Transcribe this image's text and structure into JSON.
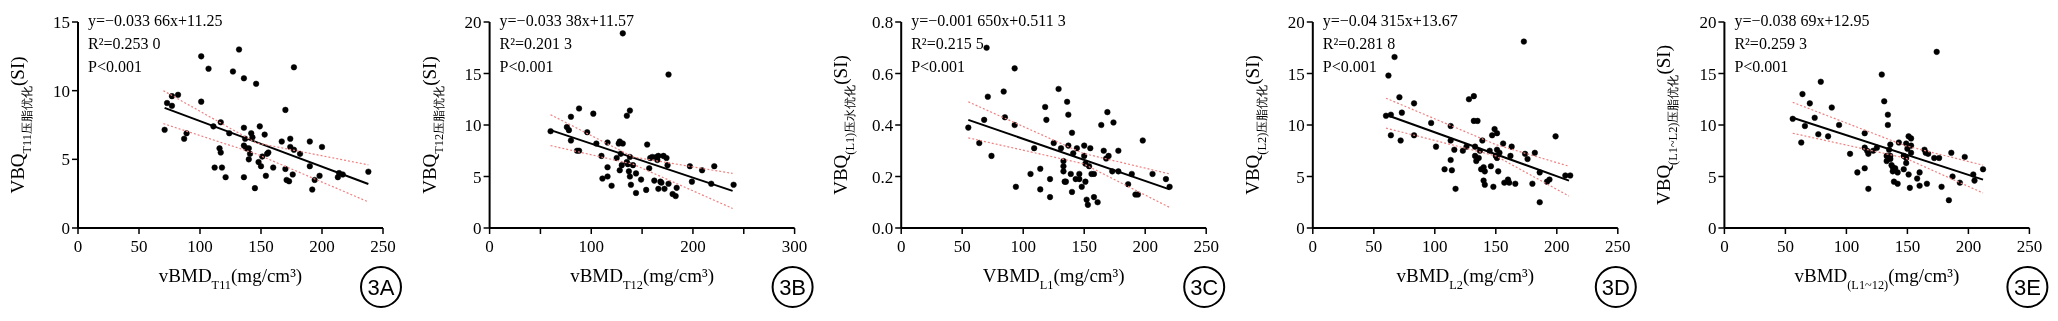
{
  "chart_data": [
    {
      "type": "scatter",
      "xlabel": "vBMD$_{T11}$(mg/cm³)",
      "ylabel": "VBQ$_{T11压脂优化}$(SI)",
      "xlim": [
        0,
        250
      ],
      "ylim": [
        0,
        15
      ],
      "xticks": [
        0,
        50,
        100,
        150,
        200,
        250
      ],
      "yticks": [
        0,
        5,
        10,
        15
      ],
      "annotations": [
        "y=−0.033 66x+11.25",
        "R²=0.253 0",
        "P<0.001",
        "3A"
      ],
      "series": [
        {
          "color": "#000000",
          "marker": "circle",
          "x": [
            71,
            73,
            77,
            77,
            82,
            87,
            89,
            101,
            101,
            107,
            111,
            112,
            116,
            117,
            117,
            118,
            121,
            124,
            127,
            132,
            136,
            136,
            136,
            136,
            137,
            138,
            140,
            140,
            141,
            142,
            143,
            145,
            146,
            148,
            149,
            150,
            151,
            153,
            154,
            155,
            156,
            160,
            167,
            170,
            170,
            171,
            173,
            174,
            174,
            176,
            177,
            177,
            182,
            190,
            190,
            192,
            194,
            198,
            200,
            213,
            214,
            217,
            238
          ],
          "values": [
            7.15,
            9.1,
            9.6,
            8.9,
            9.7,
            6.5,
            6.9,
            9.2,
            12.5,
            11.6,
            7.4,
            4.4,
            5.8,
            7.7,
            5.5,
            4.4,
            3.7,
            6.9,
            11.4,
            13.0,
            10.9,
            7.3,
            6.0,
            3.7,
            6.5,
            5.8,
            5.8,
            5.0,
            5.4,
            6.9,
            6.6,
            2.9,
            10.5,
            4.8,
            7.4,
            4.5,
            5.2,
            6.8,
            3.8,
            5.4,
            5.5,
            4.4,
            6.3,
            8.6,
            4.3,
            3.5,
            3.4,
            6.5,
            5.9,
            3.9,
            5.7,
            11.7,
            5.4,
            6.3,
            4.5,
            2.8,
            3.5,
            3.8,
            5.9,
            3.7,
            4.0,
            3.9,
            4.1
          ]
        },
        {
          "type": "line",
          "color": "#000000",
          "line_style": "solid",
          "x": [
            71,
            238
          ],
          "values": [
            8.75,
            3.2
          ]
        },
        {
          "type": "line",
          "color": "#f08080",
          "line_style": "dotted",
          "x": [
            70,
            146,
            238
          ],
          "values": [
            10.0,
            6.2,
            4.6
          ]
        },
        {
          "type": "line",
          "color": "#f08080",
          "line_style": "dotted",
          "x": [
            70,
            146,
            238
          ],
          "values": [
            7.6,
            5.4,
            1.9
          ]
        }
      ]
    },
    {
      "type": "scatter",
      "xlabel": "vBMD$_{T12}$(mg/cm³)",
      "ylabel": "VBQ$_{T12压脂优化}$(SI)",
      "xlim": [
        0,
        300
      ],
      "ylim": [
        0,
        20
      ],
      "xticks": [
        0,
        {
          "value": 50,
          "label": null
        },
        100,
        {
          "value": 150,
          "label": null
        },
        200,
        {
          "value": 250,
          "label": null
        },
        300
      ],
      "yticks": [
        0,
        5,
        10,
        15,
        20
      ],
      "annotations": [
        "y=−0.033 38x+11.57",
        "R²=0.201 3",
        "P<0.001",
        "3B"
      ],
      "series": [
        {
          "color": "#000000",
          "marker": "circle",
          "x": [
            60,
            76,
            78,
            80,
            80,
            86,
            88,
            88,
            96,
            102,
            105,
            110,
            111,
            116,
            116,
            116,
            120,
            125,
            127,
            128,
            128,
            129,
            130,
            131,
            131,
            135,
            135,
            136,
            137,
            138,
            138,
            138,
            139,
            141,
            144,
            144,
            149,
            154,
            155,
            157,
            158,
            160,
            162,
            164,
            165,
            166,
            166,
            168,
            169,
            171,
            172,
            174,
            175,
            176,
            176,
            180,
            183,
            184,
            197,
            199,
            209,
            218,
            221,
            240
          ],
          "values": [
            9.4,
            9.8,
            9.5,
            10.8,
            8.5,
            7.5,
            7.5,
            11.6,
            9.3,
            11.1,
            8.2,
            7.0,
            4.8,
            8.3,
            5.9,
            5.0,
            4.1,
            6.8,
            8.2,
            8.4,
            5.6,
            7.2,
            6.1,
            18.9,
            8.2,
            10.9,
            6.4,
            6.2,
            5.5,
            11.4,
            6.9,
            5.0,
            4.2,
            6.1,
            5.3,
            3.4,
            4.7,
            3.7,
            8.1,
            5.8,
            6.8,
            6.9,
            4.6,
            6.9,
            6.6,
            7.0,
            3.8,
            4.5,
            4.4,
            7.0,
            3.8,
            6.8,
            6.1,
            14.9,
            4.3,
            3.3,
            3.1,
            3.9,
            6.0,
            4.5,
            5.6,
            4.3,
            6.0,
            4.2
          ]
        },
        {
          "type": "line",
          "color": "#000000",
          "line_style": "solid",
          "x": [
            60,
            239
          ],
          "values": [
            9.5,
            3.6
          ]
        },
        {
          "type": "line",
          "color": "#f08080",
          "line_style": "dotted",
          "x": [
            60,
            141,
            239
          ],
          "values": [
            11.0,
            6.9,
            5.3
          ]
        },
        {
          "type": "line",
          "color": "#f08080",
          "line_style": "dotted",
          "x": [
            60,
            141,
            239
          ],
          "values": [
            8.0,
            6.2,
            1.9
          ]
        }
      ]
    },
    {
      "type": "scatter",
      "xlabel": "VBMD$_{L1}$(mg/cm³)",
      "ylabel": "VBQ$_{(L1)压水优化}$(SI)",
      "xlim": [
        0,
        250
      ],
      "ylim": [
        0,
        0.8
      ],
      "xticks": [
        0,
        50,
        100,
        150,
        200,
        250
      ],
      "yticks": [
        {
          "value": 0,
          "label": "0.0"
        },
        0.2,
        0.4,
        0.6,
        0.8
      ],
      "annotations": [
        "y=−0.001 650x+0.511 3",
        "R²=0.215 5",
        "P<0.001",
        "3C"
      ],
      "series": [
        {
          "color": "#000000",
          "marker": "circle",
          "x": [
            55,
            64,
            68,
            70,
            71,
            74,
            84,
            85,
            93,
            93,
            94,
            106,
            109,
            114,
            114,
            118,
            119,
            122,
            122,
            125,
            129,
            131,
            133,
            133,
            133,
            134,
            135,
            136,
            137,
            137,
            139,
            140,
            140,
            141,
            143,
            144,
            146,
            146,
            148,
            150,
            150,
            151,
            151,
            152,
            153,
            154,
            155,
            156,
            158,
            158,
            161,
            164,
            166,
            168,
            169,
            170,
            173,
            174,
            178,
            178,
            186,
            189,
            192,
            194,
            198,
            206,
            217,
            220
          ],
          "values": [
            0.39,
            0.33,
            0.42,
            0.7,
            0.51,
            0.28,
            0.53,
            0.43,
            0.4,
            0.62,
            0.16,
            0.21,
            0.31,
            0.23,
            0.15,
            0.47,
            0.42,
            0.19,
            0.12,
            0.33,
            0.54,
            0.31,
            0.26,
            0.24,
            0.22,
            0.18,
            0.18,
            0.49,
            0.44,
            0.32,
            0.21,
            0.37,
            0.14,
            0.29,
            0.19,
            0.31,
            0.21,
            0.19,
            0.16,
            0.32,
            0.28,
            0.25,
            0.18,
            0.11,
            0.09,
            0.24,
            0.31,
            0.21,
            0.21,
            0.12,
            0.1,
            0.4,
            0.3,
            0.27,
            0.45,
            0.28,
            0.22,
            0.41,
            0.22,
            0.3,
            0.17,
            0.21,
            0.13,
            0.13,
            0.34,
            0.21,
            0.19,
            0.16
          ]
        },
        {
          "type": "line",
          "color": "#000000",
          "line_style": "solid",
          "x": [
            55,
            220
          ],
          "values": [
            0.42,
            0.15
          ]
        },
        {
          "type": "line",
          "color": "#f08080",
          "line_style": "dotted",
          "x": [
            55,
            149,
            220
          ],
          "values": [
            0.49,
            0.29,
            0.21
          ]
        },
        {
          "type": "line",
          "color": "#f08080",
          "line_style": "dotted",
          "x": [
            55,
            149,
            220
          ],
          "values": [
            0.35,
            0.25,
            0.08
          ]
        }
      ]
    },
    {
      "type": "scatter",
      "xlabel": "vBMD$_{L2}$(mg/cm³)",
      "ylabel": "VBQ$_{(L2)压脂优化}$(SI)",
      "xlim": [
        0,
        250
      ],
      "ylim": [
        0,
        20
      ],
      "xticks": [
        0,
        50,
        100,
        150,
        200,
        250
      ],
      "yticks": [
        0,
        5,
        10,
        15,
        20
      ],
      "annotations": [
        "y=−0.04 315x+13.67",
        "R²=0.281 8",
        "P<0.001",
        "3D"
      ],
      "series": [
        {
          "color": "#000000",
          "marker": "circle",
          "x": [
            60,
            62,
            64,
            64,
            67,
            71,
            72,
            73,
            83,
            83,
            97,
            101,
            108,
            113,
            113,
            113,
            114,
            116,
            117,
            123,
            126,
            128,
            132,
            132,
            135,
            133,
            133,
            134,
            136,
            137,
            138,
            139,
            140,
            140,
            141,
            141,
            145,
            146,
            147,
            148,
            149,
            150,
            151,
            151,
            151,
            152,
            153,
            156,
            157,
            160,
            161,
            162,
            163,
            166,
            173,
            174,
            176,
            180,
            182,
            186,
            186,
            192,
            194,
            199,
            207,
            211
          ],
          "values": [
            10.9,
            14.8,
            11.0,
            9.0,
            16.6,
            12.7,
            8.5,
            11.2,
            12.1,
            9.0,
            10.2,
            7.9,
            5.7,
            9.9,
            8.5,
            6.6,
            5.6,
            7.6,
            3.8,
            7.5,
            7.9,
            12.5,
            12.8,
            10.4,
            10.4,
            7.9,
            7.0,
            6.5,
            6.8,
            7.5,
            5.7,
            8.5,
            5.9,
            4.6,
            5.5,
            4.2,
            7.5,
            6.0,
            9.0,
            4.0,
            9.6,
            7.0,
            9.2,
            7.6,
            6.8,
            5.5,
            7.3,
            8.2,
            4.4,
            4.7,
            4.4,
            7.0,
            7.9,
            4.3,
            18.1,
            7.2,
            6.7,
            4.3,
            7.3,
            2.5,
            5.4,
            4.5,
            4.7,
            8.9,
            5.1,
            5.1
          ]
        },
        {
          "type": "line",
          "color": "#000000",
          "line_style": "solid",
          "x": [
            60,
            210
          ],
          "values": [
            11.0,
            4.6
          ]
        },
        {
          "type": "line",
          "color": "#f08080",
          "line_style": "dotted",
          "x": [
            60,
            150,
            210
          ],
          "values": [
            12.6,
            8.1,
            6.0
          ]
        },
        {
          "type": "line",
          "color": "#f08080",
          "line_style": "dotted",
          "x": [
            60,
            150,
            210
          ],
          "values": [
            9.7,
            7.0,
            3.1
          ]
        }
      ]
    },
    {
      "type": "scatter",
      "xlabel": "vBMD$_{(L1~12)}$(mg/cm³)",
      "ylabel": "VBQ$_{(L1~L2)压脂优化}$(SI)",
      "xlim": [
        0,
        250
      ],
      "ylim": [
        0,
        20
      ],
      "xticks": [
        0,
        50,
        100,
        150,
        200,
        250
      ],
      "yticks": [
        0,
        5,
        10,
        15,
        20
      ],
      "annotations": [
        "y=−0.038 69x+12.95",
        "R²=0.259 3",
        "P<0.001",
        "3E"
      ],
      "series": [
        {
          "color": "#000000",
          "marker": "circle",
          "x": [
            56,
            63,
            64,
            66,
            70,
            74,
            77,
            79,
            85,
            88,
            94,
            103,
            109,
            115,
            115,
            115,
            117,
            118,
            118,
            122,
            125,
            129,
            131,
            133,
            133,
            134,
            134,
            135,
            136,
            136,
            136,
            137,
            138,
            138,
            139,
            140,
            142,
            142,
            143,
            147,
            147,
            149,
            149,
            149,
            150,
            151,
            151,
            152,
            153,
            153,
            153,
            158,
            160,
            160,
            164,
            165,
            166,
            167,
            172,
            174,
            176,
            178,
            184,
            186,
            187,
            193,
            197,
            204,
            205,
            212
          ],
          "values": [
            10.6,
            8.3,
            13.0,
            9.9,
            12.1,
            10.7,
            9.1,
            14.2,
            8.9,
            11.7,
            10.0,
            7.2,
            5.4,
            9.2,
            7.8,
            5.8,
            7.5,
            7.2,
            3.8,
            7.5,
            7.8,
            14.9,
            12.3,
            6.5,
            7.0,
            11.0,
            10.0,
            7.6,
            6.7,
            8.1,
            7.0,
            6.1,
            5.5,
            5.9,
            4.5,
            5.8,
            4.3,
            5.4,
            8.3,
            7.0,
            5.7,
            8.2,
            6.8,
            6.3,
            7.7,
            8.9,
            5.2,
            3.9,
            8.7,
            7.3,
            8.0,
            4.8,
            4.1,
            5.4,
            7.6,
            7.3,
            4.3,
            7.2,
            6.8,
            17.1,
            6.8,
            4.0,
            2.7,
            7.3,
            5.0,
            4.4,
            6.9,
            5.2,
            4.6,
            5.7
          ]
        },
        {
          "type": "line",
          "color": "#000000",
          "line_style": "solid",
          "x": [
            56,
            212
          ],
          "values": [
            10.7,
            4.7
          ]
        },
        {
          "type": "line",
          "color": "#f08080",
          "line_style": "dotted",
          "x": [
            56,
            148,
            212
          ],
          "values": [
            12.2,
            8.0,
            6.1
          ]
        },
        {
          "type": "line",
          "color": "#f08080",
          "line_style": "dotted",
          "x": [
            56,
            148,
            212
          ],
          "values": [
            9.2,
            6.8,
            3.4
          ]
        }
      ]
    }
  ]
}
